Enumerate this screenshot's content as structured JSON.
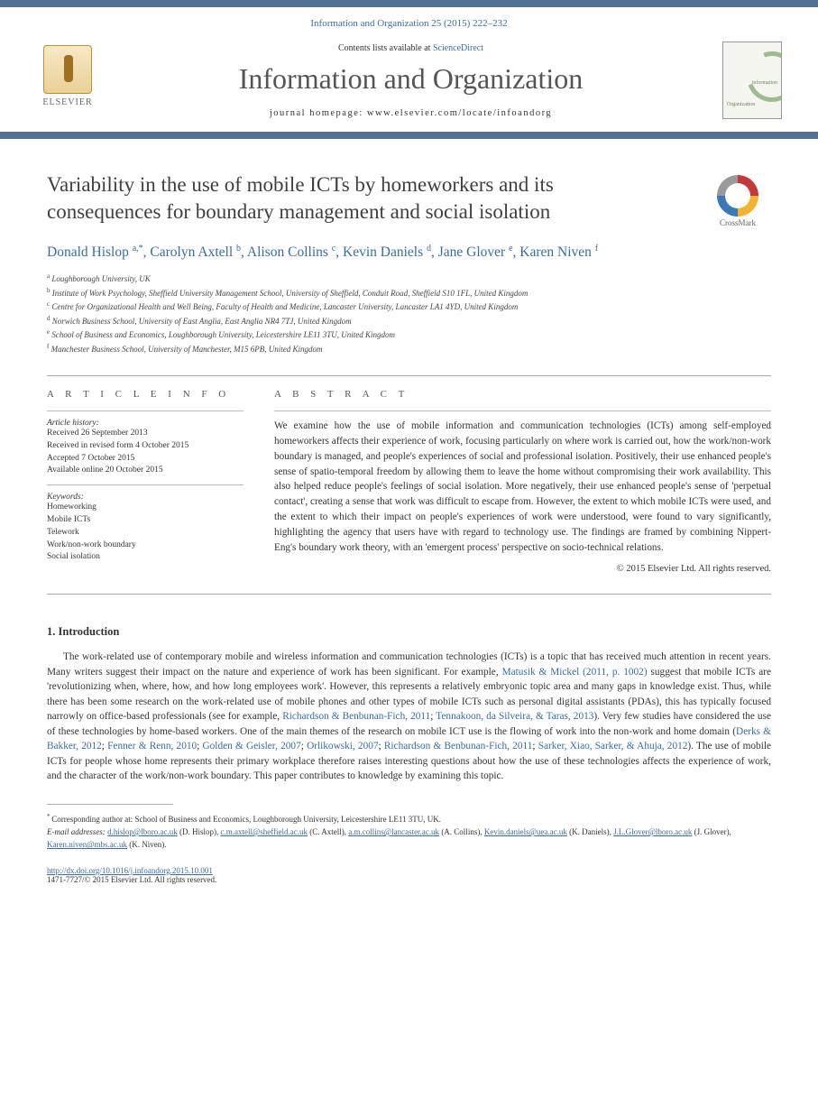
{
  "colors": {
    "band": "#527295",
    "link": "#3a6aa8",
    "text": "#333333",
    "muted": "#555555"
  },
  "header": {
    "journal_ref": "Information and Organization 25 (2015) 222–232",
    "sciencedirect_prefix": "Contents lists available at ",
    "sciencedirect": "ScienceDirect",
    "journal_title": "Information and Organization",
    "homepage": "journal homepage: www.elsevier.com/locate/infoandorg",
    "elsevier": "ELSEVIER",
    "cover_word1": "information",
    "cover_word2": "Organization"
  },
  "crossmark": "CrossMark",
  "title": "Variability in the use of mobile ICTs by homeworkers and its consequences for boundary management and social isolation",
  "authors": [
    {
      "name": "Donald Hislop",
      "sup": "a,*"
    },
    {
      "name": "Carolyn Axtell",
      "sup": "b"
    },
    {
      "name": "Alison Collins",
      "sup": "c"
    },
    {
      "name": "Kevin Daniels",
      "sup": "d"
    },
    {
      "name": "Jane Glover",
      "sup": "e"
    },
    {
      "name": "Karen Niven",
      "sup": "f"
    }
  ],
  "affiliations": [
    {
      "sup": "a",
      "text": "Loughborough University, UK"
    },
    {
      "sup": "b",
      "text": "Institute of Work Psychology, Sheffield University Management School, University of Sheffield, Conduit Road, Sheffield S10 1FL, United Kingdom"
    },
    {
      "sup": "c",
      "text": "Centre for Organizational Health and Well Being, Faculty of Health and Medicine, Lancaster University, Lancaster LA1 4YD, United Kingdom"
    },
    {
      "sup": "d",
      "text": "Norwich Business School, University of East Anglia, East Anglia NR4 7TJ, United Kingdom"
    },
    {
      "sup": "e",
      "text": "School of Business and Economics, Loughborough University, Leicestershire LE11 3TU, United Kingdom"
    },
    {
      "sup": "f",
      "text": "Manchester Business School, University of Manchester, M15 6PB, United Kingdom"
    }
  ],
  "article_info": {
    "head": "A R T I C L E   I N F O",
    "history_label": "Article history:",
    "history": [
      "Received 26 September 2013",
      "Received in revised form 4 October 2015",
      "Accepted 7 October 2015",
      "Available online 20 October 2015"
    ],
    "keywords_label": "Keywords:",
    "keywords": [
      "Homeworking",
      "Mobile ICTs",
      "Telework",
      "Work/non-work boundary",
      "Social isolation"
    ]
  },
  "abstract": {
    "head": "A B S T R A C T",
    "text": "We examine how the use of mobile information and communication technologies (ICTs) among self-employed homeworkers affects their experience of work, focusing particularly on where work is carried out, how the work/non-work boundary is managed, and people's experiences of social and professional isolation. Positively, their use enhanced people's sense of spatio-temporal freedom by allowing them to leave the home without compromising their work availability. This also helped reduce people's feelings of social isolation. More negatively, their use enhanced people's sense of 'perpetual contact', creating a sense that work was difficult to escape from. However, the extent to which mobile ICTs were used, and the extent to which their impact on people's experiences of work were understood, were found to vary significantly, highlighting the agency that users have with regard to technology use. The findings are framed by combining Nippert-Eng's boundary work theory, with an 'emergent process' perspective on socio-technical relations.",
    "copyright": "© 2015 Elsevier Ltd. All rights reserved."
  },
  "intro": {
    "head": "1. Introduction",
    "p1_pre": "The work-related use of contemporary mobile and wireless information and communication technologies (ICTs) is a topic that has received much attention in recent years. Many writers suggest their impact on the nature and experience of work has been significant. For example, ",
    "p1_cite1": "Matusik & Mickel (2011, p. 1002)",
    "p1_mid1": " suggest that mobile ICTs are 'revolutionizing when, where, how, and how long employees work'. However, this represents a relatively embryonic topic area and many gaps in knowledge exist. Thus, while there has been some research on the work-related use of mobile phones and other types of mobile ICTs such as personal digital assistants (PDAs), this has typically focused narrowly on office-based professionals (see for example, ",
    "p1_cite2": "Richardson & Benbunan-Fich, 2011",
    "p1_sep1": "; ",
    "p1_cite3": "Tennakoon, da Silveira, & Taras, 2013",
    "p1_mid2": "). Very few studies have considered the use of these technologies by home-based workers. One of the main themes of the research on mobile ICT use is the flowing of work into the non-work and home domain (",
    "p1_cite4": "Derks & Bakker, 2012",
    "p1_cite5": "Fenner & Renn, 2010",
    "p1_cite6": "Golden & Geisler, 2007",
    "p1_cite7": "Orlikowski, 2007",
    "p1_cite8": "Richardson & Benbunan-Fich, 2011",
    "p1_cite9": "Sarker, Xiao, Sarker, & Ahuja, 2012",
    "p1_mid3": "). The use of mobile ICTs for people whose home represents their primary workplace therefore raises interesting questions about how the use of these technologies affects the experience of work, and the character of the work/non-work boundary. This paper contributes to knowledge by examining this topic."
  },
  "footer": {
    "corresp_star": "* ",
    "corresp": "Corresponding author at: School of Business and Economics, Loughborough University, Leicestershire LE11 3TU, UK.",
    "emails_label": "E-mail addresses: ",
    "emails": [
      {
        "addr": "d.hislop@lboro.ac.uk",
        "who": "(D. Hislop)"
      },
      {
        "addr": "c.m.axtell@sheffield.ac.uk",
        "who": "(C. Axtell)"
      },
      {
        "addr": "a.m.collins@lancaster.ac.uk",
        "who": "(A. Collins)"
      },
      {
        "addr": "Kevin.daniels@uea.ac.uk",
        "who": "(K. Daniels)"
      },
      {
        "addr": "J.L.Glover@lboro.ac.uk",
        "who": "(J. Glover)"
      },
      {
        "addr": "Karen.niven@mbs.ac.uk",
        "who": "(K. Niven)"
      }
    ],
    "doi": "http://dx.doi.org/10.1016/j.infoandorg.2015.10.001",
    "issn_line": "1471-7727/© 2015 Elsevier Ltd. All rights reserved."
  }
}
